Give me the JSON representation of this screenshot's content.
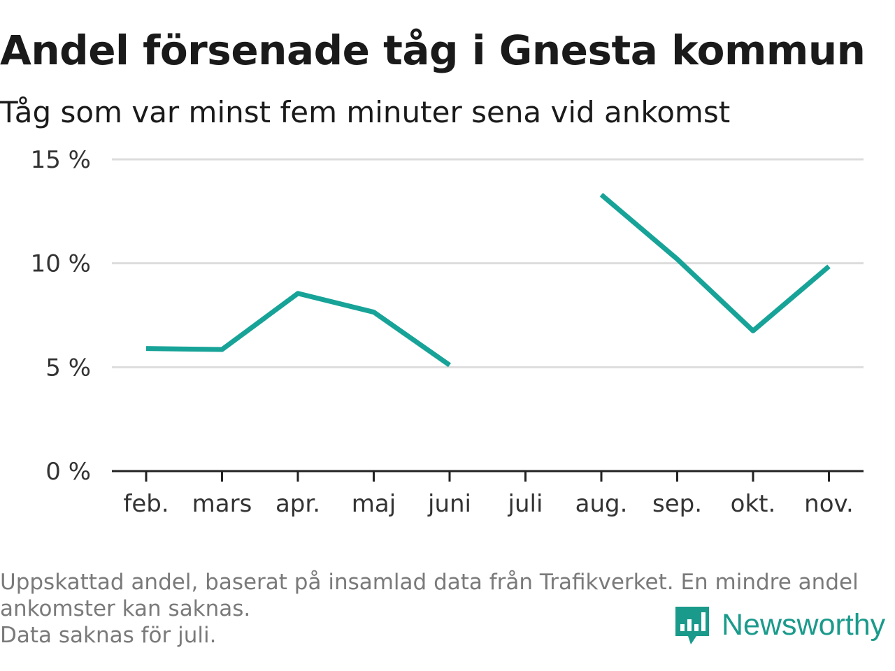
{
  "header": {
    "title": "Andel försenade tåg i Gnesta kommun",
    "subtitle": "Tåg som var minst fem minuter sena vid ankomst"
  },
  "chart_data": {
    "type": "line",
    "categories": [
      "feb.",
      "mars",
      "apr.",
      "maj",
      "juni",
      "juli",
      "aug.",
      "sep.",
      "okt.",
      "nov."
    ],
    "series": [
      {
        "values": [
          5.9,
          5.85,
          8.55,
          7.65,
          5.1,
          null,
          13.3,
          10.2,
          6.75,
          9.85
        ]
      }
    ],
    "ylim": [
      0,
      15
    ],
    "yticks": [
      0,
      5,
      10,
      15
    ],
    "ytick_labels": [
      "0 %",
      "5 %",
      "10 %",
      "15 %"
    ],
    "grid": true,
    "line_color": "#17a398",
    "grid_color": "#dddddd"
  },
  "footer": {
    "note_line1": "Uppskattad andel, baserat på insamlad data från Trafikverket. En mindre andel",
    "note_line2": "ankomster kan saknas.",
    "note_line3": "Data saknas för juli."
  },
  "brand": {
    "name": "Newsworthy",
    "icon": "newsworthy-logo-icon",
    "color": "#1a9a8b"
  }
}
